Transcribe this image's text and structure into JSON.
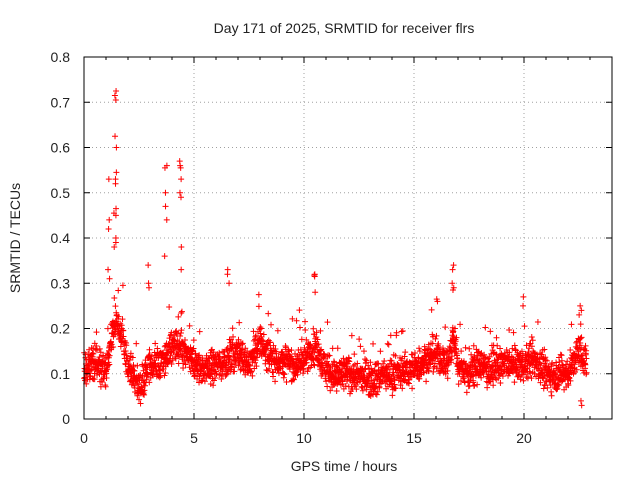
{
  "chart_data": {
    "type": "scatter",
    "title": "Day 171 of 2025, SRMTID for receiver flrs",
    "xlabel": "GPS time / hours",
    "ylabel": "SRMTID / TECUs",
    "xlim": [
      0,
      24
    ],
    "ylim": [
      0,
      0.8
    ],
    "x_ticks": [
      0,
      5,
      10,
      15,
      20
    ],
    "y_ticks": [
      0,
      0.1,
      0.2,
      0.3,
      0.4,
      0.5,
      0.6,
      0.7,
      0.8
    ],
    "x_tick_labels": [
      "0",
      "5",
      "10",
      "15",
      "20"
    ],
    "y_tick_labels": [
      "0",
      "0.1",
      "0.2",
      "0.3",
      "0.4",
      "0.5",
      "0.6",
      "0.7",
      "0.8"
    ],
    "grid": true,
    "marker": "+",
    "color": "#ff0000",
    "baseline": [
      [
        0.0,
        0.1
      ],
      [
        0.5,
        0.13
      ],
      [
        1.0,
        0.1
      ],
      [
        1.3,
        0.2
      ],
      [
        1.5,
        0.22
      ],
      [
        2.0,
        0.12
      ],
      [
        2.5,
        0.07
      ],
      [
        3.0,
        0.12
      ],
      [
        3.5,
        0.12
      ],
      [
        4.0,
        0.16
      ],
      [
        4.5,
        0.15
      ],
      [
        5.0,
        0.12
      ],
      [
        5.5,
        0.11
      ],
      [
        6.0,
        0.12
      ],
      [
        6.5,
        0.13
      ],
      [
        7.0,
        0.15
      ],
      [
        7.5,
        0.12
      ],
      [
        8.0,
        0.17
      ],
      [
        8.5,
        0.13
      ],
      [
        9.0,
        0.13
      ],
      [
        9.5,
        0.12
      ],
      [
        10.0,
        0.13
      ],
      [
        10.5,
        0.16
      ],
      [
        11.0,
        0.11
      ],
      [
        11.5,
        0.09
      ],
      [
        12.0,
        0.1
      ],
      [
        13.0,
        0.09
      ],
      [
        14.0,
        0.1
      ],
      [
        15.0,
        0.11
      ],
      [
        15.5,
        0.13
      ],
      [
        16.0,
        0.14
      ],
      [
        16.5,
        0.12
      ],
      [
        16.8,
        0.18
      ],
      [
        17.0,
        0.12
      ],
      [
        17.5,
        0.1
      ],
      [
        18.0,
        0.12
      ],
      [
        18.5,
        0.11
      ],
      [
        19.0,
        0.12
      ],
      [
        20.0,
        0.12
      ],
      [
        20.5,
        0.13
      ],
      [
        21.0,
        0.1
      ],
      [
        21.5,
        0.1
      ],
      [
        22.0,
        0.1
      ],
      [
        22.5,
        0.15
      ],
      [
        22.8,
        0.13
      ]
    ],
    "data_start": 0.0,
    "data_end": 22.85,
    "spread": 0.035,
    "points_per_hour": 115,
    "peaks": [
      {
        "x": 1.42,
        "values": [
          0.725,
          0.715,
          0.705,
          0.625,
          0.6,
          0.545,
          0.53,
          0.52,
          0.465,
          0.455,
          0.45,
          0.4,
          0.39,
          0.38
        ]
      },
      {
        "x": 1.15,
        "values": [
          0.53,
          0.44,
          0.42,
          0.33,
          0.31
        ]
      },
      {
        "x": 3.72,
        "values": [
          0.56,
          0.555,
          0.5,
          0.47,
          0.44,
          0.36
        ]
      },
      {
        "x": 4.4,
        "values": [
          0.57,
          0.56,
          0.555,
          0.53,
          0.5,
          0.49,
          0.38,
          0.33
        ]
      },
      {
        "x": 2.95,
        "values": [
          0.34,
          0.3,
          0.29
        ]
      },
      {
        "x": 6.55,
        "values": [
          0.33,
          0.32,
          0.3
        ]
      },
      {
        "x": 10.45,
        "values": [
          0.32,
          0.318,
          0.315,
          0.28
        ]
      },
      {
        "x": 16.75,
        "values": [
          0.34,
          0.33,
          0.3,
          0.29,
          0.285
        ]
      },
      {
        "x": 16.05,
        "values": [
          0.265,
          0.26
        ]
      },
      {
        "x": 20.0,
        "values": [
          0.27,
          0.25
        ]
      },
      {
        "x": 22.55,
        "values": [
          0.25,
          0.24,
          0.23
        ]
      },
      {
        "x": 22.6,
        "values": [
          0.04,
          0.03
        ]
      }
    ]
  }
}
